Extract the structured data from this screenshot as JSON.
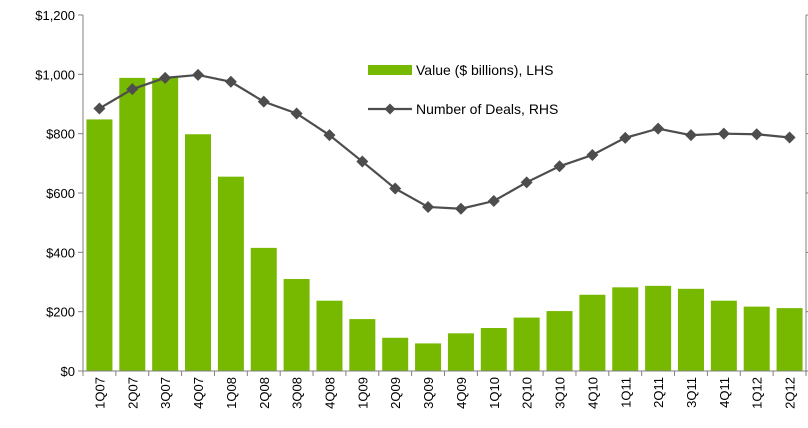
{
  "chart_data": {
    "type": "bar",
    "categories": [
      "1Q07",
      "2Q07",
      "3Q07",
      "4Q07",
      "1Q08",
      "2Q08",
      "3Q08",
      "4Q08",
      "1Q09",
      "2Q09",
      "3Q09",
      "4Q09",
      "1Q10",
      "2Q10",
      "3Q10",
      "4Q10",
      "1Q11",
      "2Q11",
      "3Q11",
      "4Q11",
      "1Q12",
      "2Q12"
    ],
    "series": [
      {
        "name": "Value ($ billions), LHS",
        "type": "bar",
        "axis": "left",
        "color": "#77b800",
        "values": [
          848,
          988,
          988,
          798,
          655,
          415,
          310,
          237,
          175,
          112,
          93,
          127,
          145,
          180,
          202,
          257,
          282,
          287,
          277,
          237,
          217,
          212
        ]
      },
      {
        "name": "Number of Deals, RHS",
        "type": "line",
        "axis": "right",
        "color": "#4d4d4d",
        "marker": "diamond",
        "values": [
          885,
          950,
          988,
          998,
          975,
          908,
          868,
          795,
          706,
          615,
          553,
          547,
          573,
          636,
          690,
          728,
          786,
          817,
          795,
          800,
          798,
          787
        ]
      }
    ],
    "yaxis_left": {
      "ylim": [
        0,
        1200
      ],
      "ticks": [
        0,
        200,
        400,
        600,
        800,
        1000,
        1200
      ],
      "tick_labels": [
        "$0",
        "$200",
        "$400",
        "$600",
        "$800",
        "$1,000",
        "$1,200"
      ]
    },
    "yaxis_right": {
      "ylim": [
        0,
        1200
      ]
    },
    "legend": {
      "placement": "top-center"
    },
    "grid": false
  }
}
